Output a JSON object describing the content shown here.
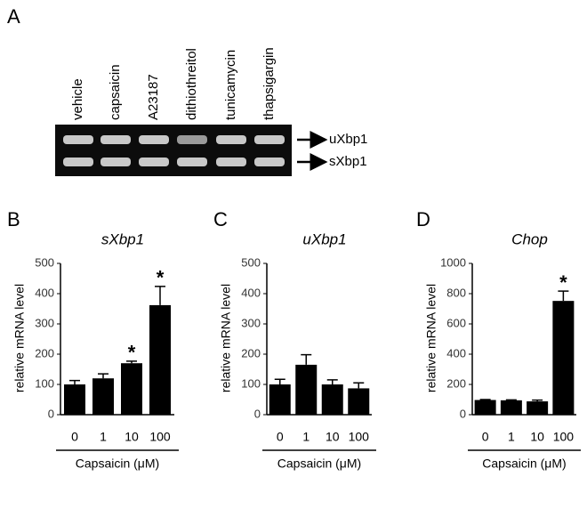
{
  "gel": {
    "panel": "A",
    "lanes": [
      "vehicle",
      "capsaicin",
      "A23187",
      "dithiothreitol",
      "tunicamycin",
      "thapsigargin"
    ],
    "bands": [
      "uXbp1",
      "sXbp1"
    ]
  },
  "chart_data": [
    {
      "type": "bar",
      "panel": "B",
      "title": "sXbp1",
      "y_label": "relative mRNA level",
      "x_label": "Capsaicin (μM)",
      "categories": [
        "0",
        "1",
        "10",
        "100"
      ],
      "values": [
        100,
        120,
        170,
        362
      ],
      "errors": [
        13,
        15,
        7,
        62
      ],
      "significance": [
        null,
        null,
        "*",
        "*"
      ],
      "color": "#000000",
      "ylim": [
        0,
        500
      ],
      "yticks": [
        0,
        100,
        200,
        300,
        400,
        500
      ]
    },
    {
      "type": "bar",
      "panel": "C",
      "title": "uXbp1",
      "y_label": "relative mRNA level",
      "x_label": "Capsaicin (μM)",
      "categories": [
        "0",
        "1",
        "10",
        "100"
      ],
      "values": [
        100,
        165,
        100,
        87
      ],
      "errors": [
        17,
        33,
        15,
        18
      ],
      "significance": [
        null,
        null,
        null,
        null
      ],
      "color": "#000000",
      "ylim": [
        0,
        500
      ],
      "yticks": [
        0,
        100,
        200,
        300,
        400,
        500
      ]
    },
    {
      "type": "bar",
      "panel": "D",
      "title": "Chop",
      "y_label": "relative mRNA level",
      "x_label": "Capsaicin (μM)",
      "categories": [
        "0",
        "1",
        "10",
        "100"
      ],
      "values": [
        97,
        95,
        88,
        752
      ],
      "errors": [
        3,
        3,
        8,
        65
      ],
      "significance": [
        null,
        null,
        null,
        "*"
      ],
      "color": "#000000",
      "ylim": [
        0,
        1000
      ],
      "yticks": [
        0,
        200,
        400,
        600,
        800,
        1000
      ]
    }
  ]
}
